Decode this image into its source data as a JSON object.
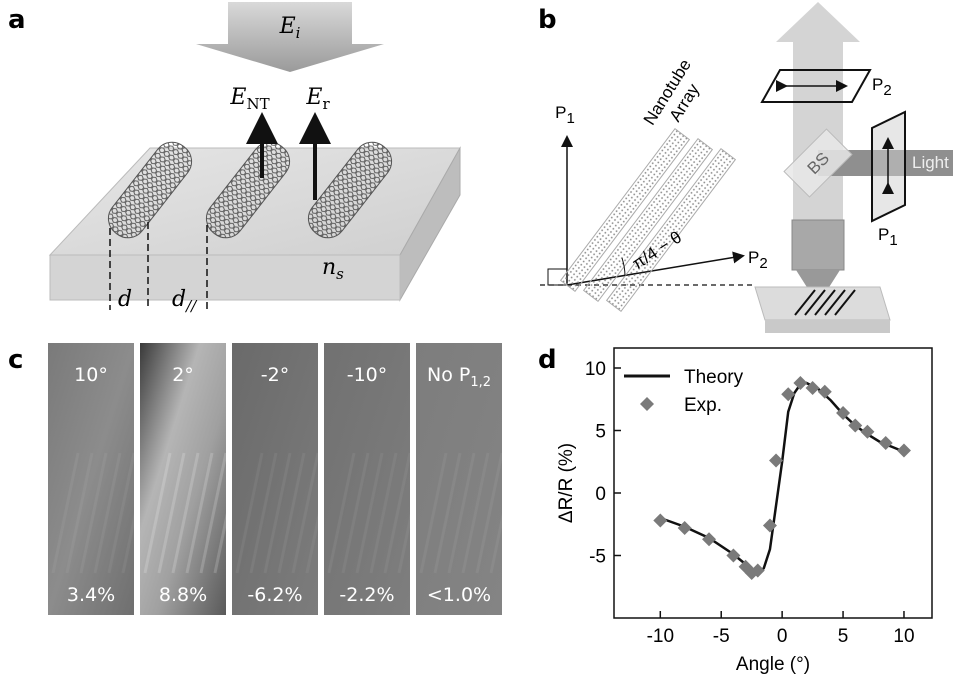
{
  "panel_labels": [
    "a",
    "b",
    "c",
    "d"
  ],
  "panel_a": {
    "incident": {
      "base": "E",
      "sub": "i"
    },
    "nanotube_field": {
      "base": "E",
      "sub": "NT"
    },
    "reflected_field": {
      "base": "E",
      "sub": "r"
    },
    "substrate_index": {
      "base": "n",
      "sub": "s"
    },
    "diameter": "d",
    "spacing": {
      "base": "d",
      "sub": "//"
    }
  },
  "panel_b": {
    "p1_axis": {
      "base": "P",
      "sub": "1"
    },
    "p2_axis": {
      "base": "P",
      "sub": "2"
    },
    "array_label": [
      "Nanotube",
      "Array"
    ],
    "angle_label": "π/4 − θ",
    "polarizer_top": {
      "base": "P",
      "sub": "2"
    },
    "beam_splitter": "BS",
    "light": "Light",
    "polarizer_side": {
      "base": "P",
      "sub": "1"
    }
  },
  "panel_c": {
    "images": [
      {
        "angle": "10°",
        "contrast": "3.4%"
      },
      {
        "angle": "2°",
        "contrast": "8.8%"
      },
      {
        "angle": "-2°",
        "contrast": "-6.2%"
      },
      {
        "angle": "-10°",
        "contrast": "-2.2%"
      },
      {
        "angle": {
          "base": "No P",
          "sub": "1,2"
        },
        "contrast": "<1.0%"
      }
    ]
  },
  "chart_data": {
    "type": "line",
    "xlabel": "Angle (°)",
    "ylabel": "ΔR/R (%)",
    "xlim": [
      -13.8,
      12.3
    ],
    "ylim": [
      -10,
      11.6
    ],
    "xticks": [
      -10,
      -5,
      0,
      5,
      10
    ],
    "yticks": [
      -5,
      0,
      5,
      10
    ],
    "legend": "upper left",
    "series": [
      {
        "name": "Theory",
        "type": "line",
        "color": "#111111",
        "x": [
          -10,
          -8,
          -6,
          -4,
          -3,
          -2,
          -1.5,
          -1,
          -0.5,
          0,
          0.5,
          1,
          1.5,
          2,
          3,
          4,
          5,
          6,
          7,
          8,
          9,
          10
        ],
        "values": [
          -2.0,
          -2.7,
          -3.6,
          -4.9,
          -5.7,
          -6.6,
          -6.0,
          -4.5,
          -1.0,
          2.5,
          6.5,
          8.0,
          8.7,
          8.8,
          8.3,
          7.4,
          6.3,
          5.4,
          4.7,
          4.1,
          3.7,
          3.3
        ]
      },
      {
        "name": "Exp.",
        "type": "scatter",
        "color": "#7a7a7a",
        "x": [
          -10,
          -8,
          -6,
          -4,
          -3,
          -2.5,
          -2,
          -1,
          -0.5,
          0.5,
          1.5,
          2.5,
          3.5,
          5,
          6,
          7,
          8.5,
          10
        ],
        "values": [
          -2.2,
          -2.8,
          -3.7,
          -5.0,
          -5.9,
          -6.4,
          -6.2,
          -2.6,
          2.6,
          7.9,
          8.8,
          8.4,
          8.1,
          6.4,
          5.4,
          4.9,
          4.0,
          3.4
        ]
      }
    ]
  }
}
